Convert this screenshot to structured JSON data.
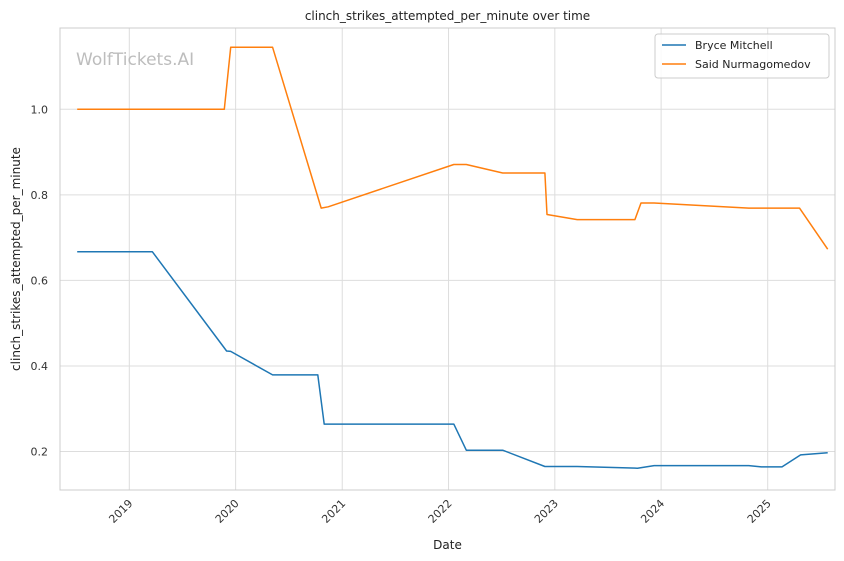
{
  "chart_data": {
    "type": "line",
    "title": "clinch_strikes_attempted_per_minute over time",
    "xlabel": "Date",
    "ylabel": "clinch_strikes_attempted_per_minute",
    "watermark": "WolfTickets.AI",
    "x_ticks": [
      "2019",
      "2020",
      "2021",
      "2022",
      "2023",
      "2024",
      "2025"
    ],
    "y_ticks": [
      "0.2",
      "0.4",
      "0.6",
      "0.8",
      "1.0"
    ],
    "x_range": [
      "2018-05-08",
      "2025-08-20"
    ],
    "y_range": [
      0.11,
      1.19
    ],
    "grid": true,
    "legend_position": "top-right",
    "series": [
      {
        "name": "Bryce Mitchell",
        "color": "#1f77b4",
        "points": [
          [
            "2018-07-06",
            0.667
          ],
          [
            "2019-03-21",
            0.667
          ],
          [
            "2019-12-01",
            0.435
          ],
          [
            "2019-12-15",
            0.434
          ],
          [
            "2020-05-07",
            0.379
          ],
          [
            "2020-10-09",
            0.379
          ],
          [
            "2020-10-31",
            0.264
          ],
          [
            "2022-01-19",
            0.264
          ],
          [
            "2022-03-03",
            0.203
          ],
          [
            "2022-07-06",
            0.203
          ],
          [
            "2022-11-28",
            0.165
          ],
          [
            "2023-03-19",
            0.165
          ],
          [
            "2023-10-12",
            0.161
          ],
          [
            "2023-12-08",
            0.167
          ],
          [
            "2024-10-28",
            0.167
          ],
          [
            "2024-12-10",
            0.164
          ],
          [
            "2025-02-19",
            0.164
          ],
          [
            "2025-04-24",
            0.192
          ],
          [
            "2025-07-26",
            0.197
          ]
        ]
      },
      {
        "name": "Said Nurmagomedov",
        "color": "#ff7f0e",
        "points": [
          [
            "2018-07-06",
            1.0
          ],
          [
            "2019-11-23",
            1.0
          ],
          [
            "2019-12-15",
            1.145
          ],
          [
            "2020-05-07",
            1.145
          ],
          [
            "2020-10-21",
            0.769
          ],
          [
            "2020-11-14",
            0.772
          ],
          [
            "2022-01-19",
            0.871
          ],
          [
            "2022-03-03",
            0.871
          ],
          [
            "2022-07-06",
            0.851
          ],
          [
            "2022-11-28",
            0.851
          ],
          [
            "2022-12-05",
            0.754
          ],
          [
            "2023-03-19",
            0.742
          ],
          [
            "2023-10-03",
            0.742
          ],
          [
            "2023-10-24",
            0.781
          ],
          [
            "2023-12-08",
            0.781
          ],
          [
            "2024-10-28",
            0.769
          ],
          [
            "2025-04-20",
            0.769
          ],
          [
            "2025-07-26",
            0.673
          ]
        ]
      }
    ]
  }
}
